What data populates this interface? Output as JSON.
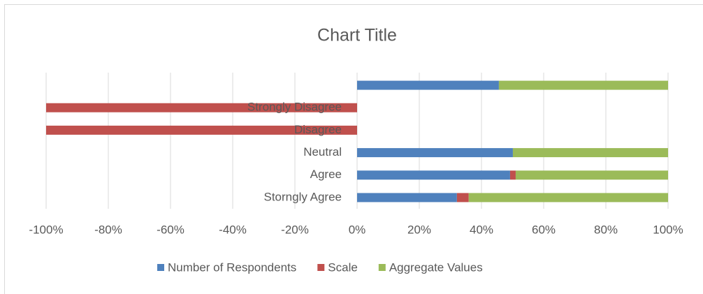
{
  "chart_data": {
    "type": "stacked_barh",
    "title": "Chart Title",
    "categories": [
      "Storngly Agree",
      "Agree",
      "Neutral",
      "Disagree",
      "Strongly Disagree",
      null
    ],
    "series": [
      {
        "name": "Number of Respondents",
        "color": "#4f81bd",
        "values": [
          32.1,
          49.2,
          50.1,
          0,
          0,
          45.6
        ]
      },
      {
        "name": "Scale",
        "color": "#c0504d",
        "values": [
          3.8,
          1.8,
          0,
          -100,
          -100,
          0
        ]
      },
      {
        "name": "Aggregate Values",
        "color": "#9bbb59",
        "values": [
          64.1,
          49,
          49.9,
          0,
          0,
          54.4
        ]
      }
    ],
    "xlim": [
      -100,
      100
    ],
    "xticks": [
      {
        "value": -100,
        "label": "-100%"
      },
      {
        "value": -80,
        "label": "-80%"
      },
      {
        "value": -60,
        "label": "-60%"
      },
      {
        "value": -40,
        "label": "-40%"
      },
      {
        "value": -20,
        "label": "-20%"
      },
      {
        "value": 0,
        "label": "0%"
      },
      {
        "value": 20,
        "label": "20%"
      },
      {
        "value": 40,
        "label": "40%"
      },
      {
        "value": 60,
        "label": "60%"
      },
      {
        "value": 80,
        "label": "80%"
      },
      {
        "value": 100,
        "label": "100%"
      }
    ],
    "grid": true,
    "legend": "bottom"
  }
}
